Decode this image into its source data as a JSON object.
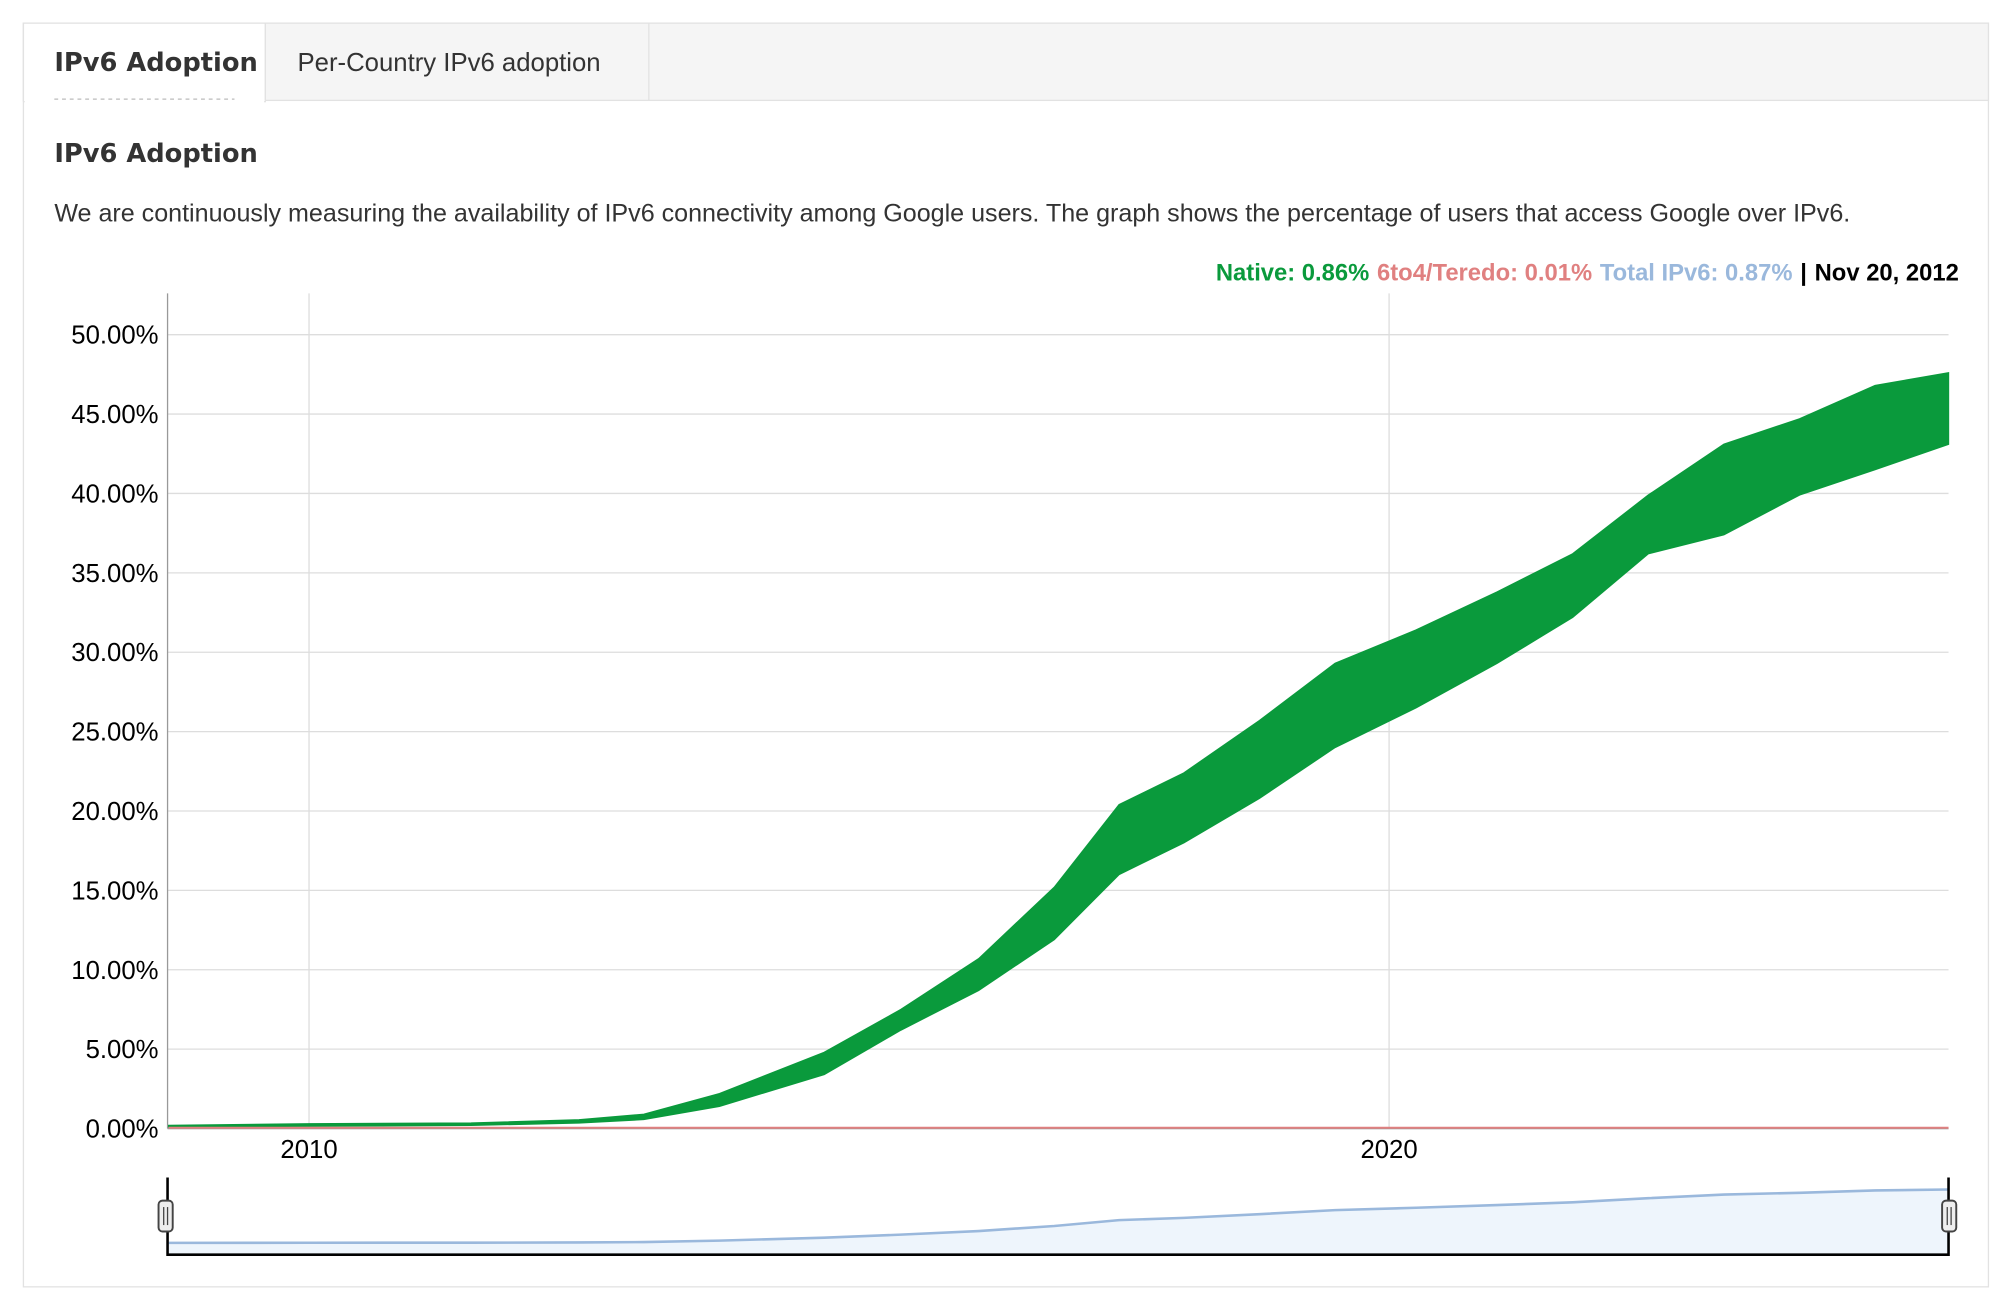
{
  "tabs": [
    "IPv6 Adoption",
    "Per-Country IPv6 adoption"
  ],
  "heading": "IPv6 Adoption",
  "description": "We are continuously measuring the availability of IPv6 connectivity among Google users. The graph shows the percentage of users that access Google over IPv6.",
  "legend": {
    "items": [
      {
        "label": "Native: 0.86%",
        "color": "#0a9a3c"
      },
      {
        "label": "6to4/Teredo: 0.01%",
        "color": "#e08080"
      },
      {
        "label": "Total IPv6: 0.87%",
        "color": "#9ab8dc"
      }
    ],
    "separator": "|",
    "date": "Nov 20, 2012"
  },
  "chart_data": {
    "type": "area-band",
    "x": [
      2008.7,
      2010,
      2011.5,
      2012.5,
      2013.1,
      2013.8,
      2014.77,
      2015.48,
      2016.2,
      2016.9,
      2017.5,
      2018.1,
      2018.8,
      2019.5,
      2020.25,
      2021,
      2021.7,
      2022.4,
      2023.1,
      2023.8,
      2024.5,
      2025.18
    ],
    "series": [
      {
        "name": "Native",
        "color": "#0a9a3c",
        "values": [
          0.2,
          0.3,
          0.35,
          0.55,
          0.9,
          2.2,
          4.8,
          7.5,
          10.7,
          15.2,
          20.4,
          22.4,
          25.7,
          29.3,
          31.4,
          33.8,
          36.2,
          39.9,
          43.1,
          44.7,
          46.8,
          47.6
        ],
        "low": [
          0.1,
          0.15,
          0.2,
          0.35,
          0.57,
          1.4,
          3.4,
          6.2,
          8.7,
          11.9,
          16,
          18,
          20.8,
          24,
          26.5,
          29.3,
          32.2,
          36.2,
          37.4,
          39.9,
          41.5,
          43.1
        ]
      },
      {
        "name": "6to4/Teredo",
        "color": "#e08080",
        "values": [
          0.05,
          0.05,
          0.05,
          0.05,
          0.05,
          0.05,
          0.05,
          0.05,
          0.05,
          0.05,
          0.05,
          0.05,
          0.05,
          0.05,
          0.05,
          0.05,
          0.05,
          0.05,
          0.05,
          0.05,
          0.05,
          0.05
        ]
      }
    ],
    "xlim": [
      2008.69,
      2025.18
    ],
    "xticks": [
      2010,
      2020
    ],
    "ylim": [
      0,
      52.6
    ],
    "yticks": [
      {
        "value": 0,
        "label": "0.00%"
      },
      {
        "value": 5,
        "label": "5.00%"
      },
      {
        "value": 10,
        "label": "10.00%"
      },
      {
        "value": 15,
        "label": "15.00%"
      },
      {
        "value": 20,
        "label": "20.00%"
      },
      {
        "value": 25,
        "label": "25.00%"
      },
      {
        "value": 30,
        "label": "30.00%"
      },
      {
        "value": 35,
        "label": "35.00%"
      },
      {
        "value": 40,
        "label": "40.00%"
      },
      {
        "value": 45,
        "label": "45.00%"
      },
      {
        "value": 50,
        "label": "50.00%"
      }
    ],
    "grid": true,
    "navigator": true
  }
}
